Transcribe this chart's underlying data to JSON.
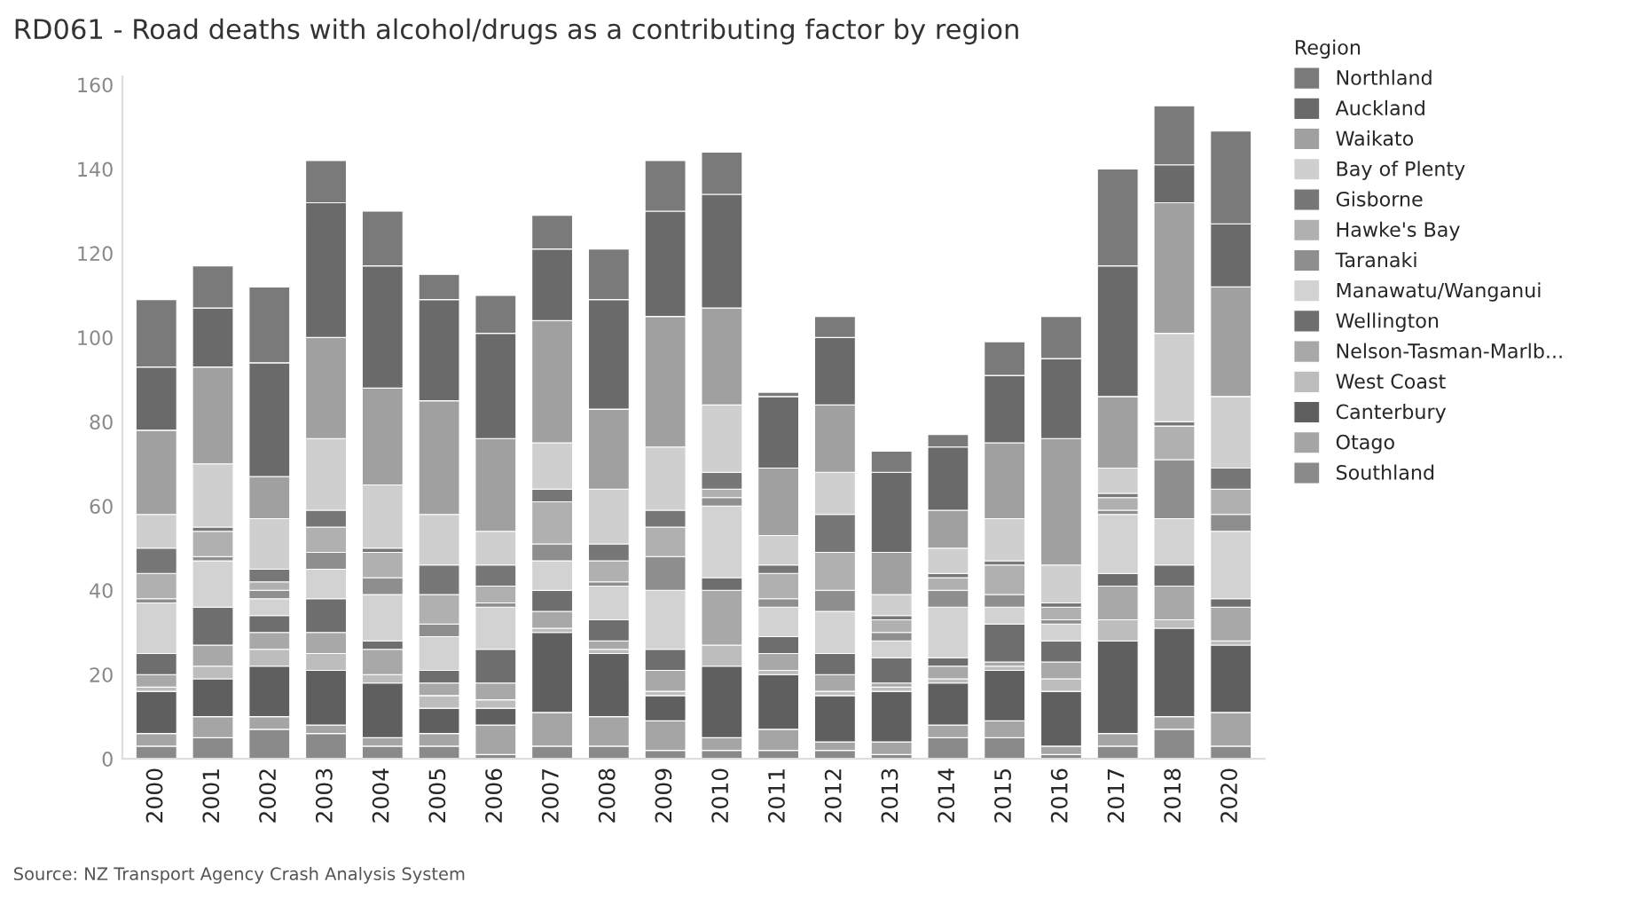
{
  "chart_data": {
    "type": "bar",
    "stacked": true,
    "title": "RD061 - Road deaths with alcohol/drugs as a contributing factor by region",
    "legend_title": "Region",
    "legend": "right",
    "grid": false,
    "categories": [
      "2000",
      "2001",
      "2002",
      "2003",
      "2004",
      "2005",
      "2006",
      "2007",
      "2008",
      "2009",
      "2010",
      "2011",
      "2012",
      "2013",
      "2014",
      "2015",
      "2016",
      "2017",
      "2018",
      "2020"
    ],
    "ylim": [
      0,
      162
    ],
    "yticks": [
      0,
      20,
      40,
      60,
      80,
      100,
      120,
      140,
      160
    ],
    "annotations": [
      "Source: NZ Transport Agency Crash Analysis System"
    ],
    "series": [
      {
        "name": "Southland",
        "color": "#8a8a8a",
        "values": [
          3,
          5,
          7,
          6,
          3,
          3,
          1,
          3,
          3,
          2,
          2,
          2,
          2,
          1,
          5,
          5,
          1,
          3,
          7,
          3
        ]
      },
      {
        "name": "Otago",
        "color": "#a5a5a5",
        "values": [
          3,
          5,
          3,
          2,
          2,
          3,
          7,
          8,
          7,
          7,
          3,
          5,
          2,
          3,
          3,
          4,
          2,
          3,
          3,
          8
        ]
      },
      {
        "name": "Canterbury",
        "color": "#5f5f5f",
        "values": [
          10,
          9,
          12,
          13,
          13,
          6,
          4,
          19,
          15,
          6,
          17,
          13,
          11,
          12,
          10,
          12,
          13,
          22,
          21,
          16
        ]
      },
      {
        "name": "West Coast",
        "color": "#bdbdbd",
        "values": [
          1,
          3,
          4,
          4,
          2,
          3,
          2,
          1,
          1,
          1,
          5,
          1,
          1,
          1,
          1,
          1,
          3,
          5,
          2,
          1
        ]
      },
      {
        "name": "Nelson-Tasman-Marlb...",
        "color": "#a8a8a8",
        "values": [
          3,
          5,
          4,
          5,
          6,
          3,
          4,
          4,
          2,
          5,
          13,
          4,
          4,
          1,
          3,
          1,
          4,
          8,
          8,
          8
        ]
      },
      {
        "name": "Wellington",
        "color": "#6e6e6e",
        "values": [
          5,
          9,
          4,
          8,
          2,
          3,
          8,
          5,
          5,
          5,
          3,
          4,
          5,
          6,
          2,
          9,
          5,
          3,
          5,
          2
        ]
      },
      {
        "name": "Manawatu/Wanganui",
        "color": "#d2d2d2",
        "values": [
          12,
          11,
          4,
          7,
          11,
          8,
          10,
          7,
          8,
          14,
          17,
          7,
          10,
          4,
          12,
          4,
          4,
          14,
          11,
          16
        ]
      },
      {
        "name": "Taranaki",
        "color": "#8e8e8e",
        "values": [
          1,
          1,
          2,
          4,
          4,
          3,
          1,
          4,
          1,
          8,
          2,
          2,
          5,
          2,
          4,
          3,
          1,
          1,
          14,
          4
        ]
      },
      {
        "name": "Hawke's Bay",
        "color": "#b0b0b0",
        "values": [
          6,
          6,
          2,
          6,
          6,
          7,
          4,
          10,
          5,
          7,
          2,
          6,
          9,
          3,
          3,
          7,
          3,
          3,
          8,
          6
        ]
      },
      {
        "name": "Gisborne",
        "color": "#777777",
        "values": [
          6,
          1,
          3,
          4,
          1,
          7,
          5,
          3,
          4,
          4,
          4,
          2,
          9,
          1,
          1,
          1,
          1,
          1,
          1,
          5
        ]
      },
      {
        "name": "Bay of Plenty",
        "color": "#cfcfcf",
        "values": [
          8,
          15,
          12,
          17,
          15,
          12,
          8,
          11,
          13,
          15,
          16,
          7,
          10,
          5,
          6,
          10,
          9,
          6,
          21,
          17
        ]
      },
      {
        "name": "Waikato",
        "color": "#a0a0a0",
        "values": [
          20,
          23,
          10,
          24,
          23,
          27,
          22,
          29,
          19,
          31,
          23,
          16,
          16,
          10,
          9,
          18,
          30,
          17,
          31,
          26
        ]
      },
      {
        "name": "Auckland",
        "color": "#6a6a6a",
        "values": [
          15,
          14,
          27,
          32,
          29,
          24,
          25,
          17,
          26,
          25,
          27,
          17,
          16,
          19,
          15,
          16,
          19,
          31,
          9,
          15
        ]
      },
      {
        "name": "Northland",
        "color": "#7a7a7a",
        "values": [
          16,
          10,
          18,
          10,
          13,
          6,
          9,
          8,
          12,
          12,
          10,
          1,
          5,
          5,
          3,
          8,
          10,
          23,
          14,
          22
        ]
      }
    ]
  }
}
